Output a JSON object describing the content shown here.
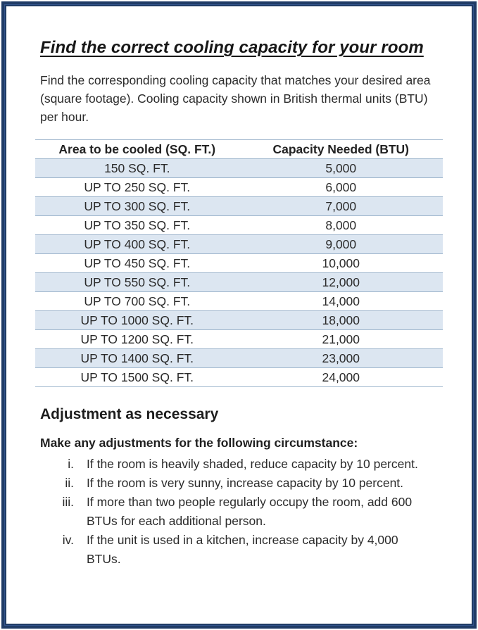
{
  "doc": {
    "title": "Find the correct cooling capacity for your room",
    "intro": "Find the corresponding cooling capacity that matches your desired area (square footage). Cooling capacity shown in British thermal units (BTU) per hour."
  },
  "table": {
    "headers": [
      "Area to be cooled (SQ. FT.)",
      "Capacity Needed (BTU)"
    ],
    "rows": [
      [
        "150 SQ. FT.",
        "5,000"
      ],
      [
        "UP TO 250 SQ. FT.",
        "6,000"
      ],
      [
        "UP TO 300 SQ. FT.",
        "7,000"
      ],
      [
        "UP TO 350 SQ. FT.",
        "8,000"
      ],
      [
        "UP TO 400 SQ. FT.",
        "9,000"
      ],
      [
        "UP TO 450 SQ. FT.",
        "10,000"
      ],
      [
        "UP TO 550 SQ. FT.",
        "12,000"
      ],
      [
        "UP TO 700 SQ. FT.",
        "14,000"
      ],
      [
        "UP TO 1000 SQ. FT.",
        "18,000"
      ],
      [
        "UP TO 1200 SQ. FT.",
        "21,000"
      ],
      [
        "UP TO 1400 SQ. FT.",
        "23,000"
      ],
      [
        "UP TO 1500 SQ. FT.",
        "24,000"
      ]
    ]
  },
  "adjustments": {
    "heading": "Adjustment as necessary",
    "lead": "Make any adjustments for the following circumstance:",
    "items": [
      {
        "marker": "i.",
        "text": "If the room is heavily shaded, reduce capacity by 10 percent."
      },
      {
        "marker": "ii.",
        "text": "If the room is very sunny, increase capacity by 10 percent."
      },
      {
        "marker": "iii.",
        "text": "If more than two people regularly occupy the room, add 600 BTUs for each additional person."
      },
      {
        "marker": "iv.",
        "text": "If the unit is used in a kitchen, increase capacity by 4,000 BTUs."
      }
    ]
  },
  "colors": {
    "frame_navy": "#1f3b66",
    "row_band_blue": "#dce6f1",
    "row_line_blue": "#9fb6cd",
    "text": "#262626"
  }
}
